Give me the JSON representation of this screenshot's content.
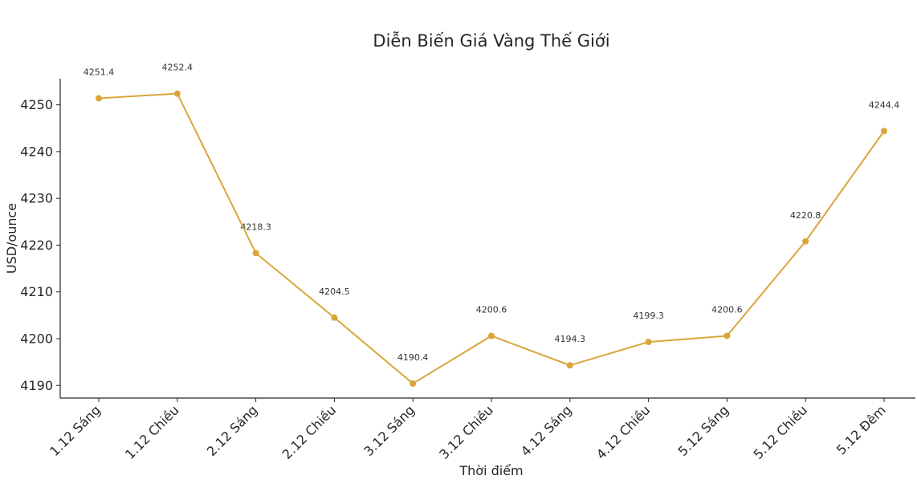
{
  "chart_data": {
    "type": "line",
    "title": "Diễn Biến Giá Vàng Thế Giới",
    "xlabel": "Thời điểm",
    "ylabel": "USD/ounce",
    "categories": [
      "1.12 Sáng",
      "1.12 Chiều",
      "2.12 Sáng",
      "2.12 Chiều",
      "3.12 Sáng",
      "3.12 Chiều",
      "4.12 Sáng",
      "4.12 Chiều",
      "5.12 Sáng",
      "5.12 Chiều",
      "5.12 Đêm"
    ],
    "values": [
      4251.4,
      4252.4,
      4218.3,
      4204.5,
      4190.4,
      4200.6,
      4194.3,
      4199.3,
      4200.6,
      4220.8,
      4244.4
    ],
    "data_labels": [
      "4251.4",
      "4252.4",
      "4218.3",
      "4204.5",
      "4190.4",
      "4200.6",
      "4194.3",
      "4199.3",
      "4200.6",
      "4220.8",
      "4244.4"
    ],
    "yticks": [
      4190,
      4200,
      4210,
      4220,
      4230,
      4240,
      4250
    ],
    "ylim": [
      4187.3,
      4255.6
    ],
    "grid": false,
    "legend": "none",
    "line_color": "#d9a53a"
  }
}
